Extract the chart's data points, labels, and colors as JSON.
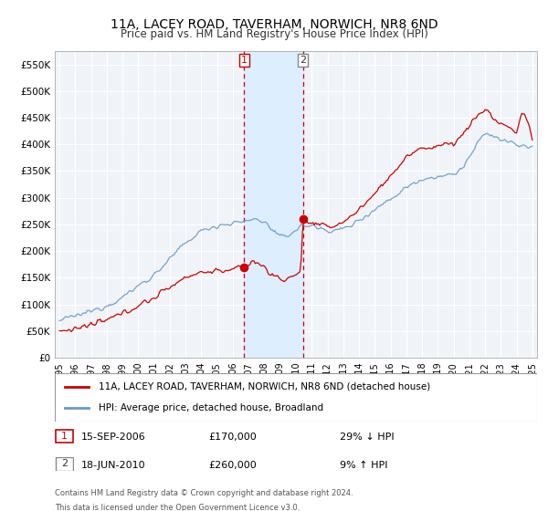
{
  "title": "11A, LACEY ROAD, TAVERHAM, NORWICH, NR8 6ND",
  "subtitle": "Price paid vs. HM Land Registry's House Price Index (HPI)",
  "ylim": [
    0,
    575000
  ],
  "xlim_start": 1994.7,
  "xlim_end": 2025.3,
  "sale1_year": 2006.708,
  "sale1_price": 170000,
  "sale2_year": 2010.458,
  "sale2_price": 260000,
  "sale1_date": "15-SEP-2006",
  "sale1_amount": "£170,000",
  "sale1_hpi": "29% ↓ HPI",
  "sale2_date": "18-JUN-2010",
  "sale2_amount": "£260,000",
  "sale2_hpi": "9% ↑ HPI",
  "legend_line1": "11A, LACEY ROAD, TAVERHAM, NORWICH, NR8 6ND (detached house)",
  "legend_line2": "HPI: Average price, detached house, Broadland",
  "footnote1": "Contains HM Land Registry data © Crown copyright and database right 2024.",
  "footnote2": "This data is licensed under the Open Government Licence v3.0.",
  "red_color": "#cc0000",
  "blue_color": "#6699cc",
  "shade_color": "#ddeeff",
  "plot_bg": "#f0f4f8"
}
